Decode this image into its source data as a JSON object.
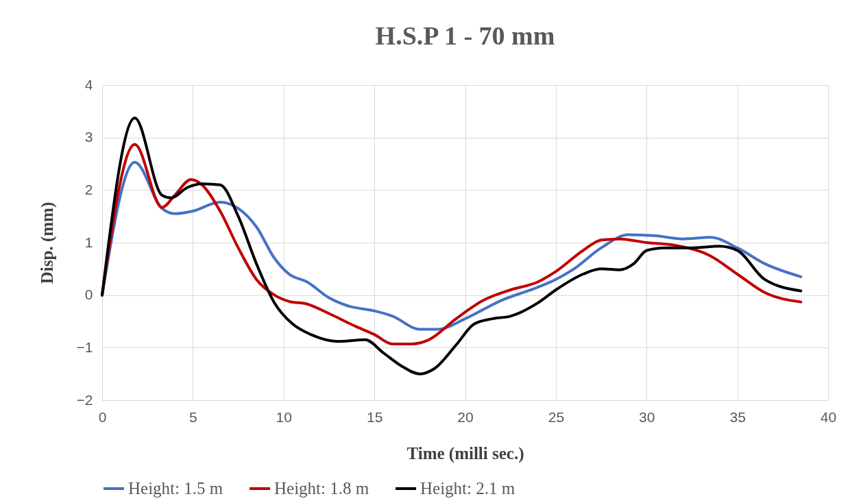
{
  "chart_data": {
    "type": "line",
    "title": "H.S.P 1 - 70 mm",
    "xlabel": "Time (milli sec.)",
    "ylabel": "Disp. (mm)",
    "xlim": [
      0,
      40
    ],
    "xticks": [
      0,
      5,
      10,
      15,
      20,
      25,
      30,
      35,
      40
    ],
    "ylim": [
      -2,
      4
    ],
    "yticks": [
      -2,
      -1,
      0,
      1,
      2,
      3,
      4
    ],
    "grid": true,
    "legend": "bottom",
    "line_style": "solid",
    "marker": "none",
    "series": [
      {
        "name": "Height: 1.5 m",
        "color": "#4472c4",
        "x": [
          0,
          1.8,
          3.3,
          4,
          5,
          6.5,
          7.5,
          8.5,
          9.5,
          10.3,
          11.3,
          12.5,
          13.5,
          15,
          16,
          17.5,
          18.5,
          20,
          22,
          24,
          25,
          26,
          27.5,
          29,
          30.5,
          32,
          33.5,
          35,
          36.5,
          38.5
        ],
        "values": [
          0,
          2.53,
          1.65,
          1.55,
          1.6,
          1.77,
          1.65,
          1.3,
          0.7,
          0.4,
          0.25,
          -0.05,
          -0.2,
          -0.3,
          -0.4,
          -0.65,
          -0.65,
          -0.45,
          -0.1,
          0.15,
          0.3,
          0.5,
          0.9,
          1.15,
          1.13,
          1.07,
          1.1,
          0.9,
          0.6,
          0.35
        ]
      },
      {
        "name": "Height: 1.8 m",
        "color": "#c00000",
        "x": [
          0,
          1.8,
          3.3,
          4,
          4.9,
          5.5,
          6.5,
          7.5,
          8.5,
          9.5,
          10.3,
          11.3,
          12.5,
          14,
          15,
          16,
          17,
          18,
          19.5,
          21,
          22.5,
          24,
          25,
          26.5,
          27.5,
          28.5,
          30,
          31.5,
          33.5,
          35,
          36.5,
          38.5
        ],
        "values": [
          0,
          2.87,
          1.67,
          1.9,
          2.2,
          2.1,
          1.6,
          0.9,
          0.3,
          0,
          -0.12,
          -0.17,
          -0.35,
          -0.6,
          -0.75,
          -0.93,
          -0.93,
          -0.85,
          -0.45,
          -0.1,
          0.1,
          0.25,
          0.45,
          0.85,
          1.05,
          1.07,
          1,
          0.95,
          0.75,
          0.4,
          0.05,
          -0.13
        ]
      },
      {
        "name": "Height: 2.1 m",
        "color": "#000000",
        "x": [
          0,
          1.8,
          3.3,
          3.8,
          4.7,
          5.5,
          6.5,
          7.5,
          8.5,
          9.5,
          10.5,
          11.5,
          13,
          14.5,
          15.5,
          16.5,
          17.5,
          18.3,
          19.5,
          20.5,
          21.5,
          22.5,
          24,
          25,
          26.5,
          27.5,
          28.5,
          29.3,
          30,
          31,
          32.5,
          34,
          35,
          36.5,
          38.5
        ],
        "values": [
          0,
          3.37,
          1.9,
          1.85,
          2.05,
          2.12,
          2.1,
          1.5,
          0.6,
          -0.15,
          -0.55,
          -0.75,
          -0.88,
          -0.85,
          -1.1,
          -1.35,
          -1.5,
          -1.4,
          -0.95,
          -0.55,
          -0.45,
          -0.4,
          -0.15,
          0.1,
          0.4,
          0.5,
          0.48,
          0.6,
          0.85,
          0.9,
          0.9,
          0.93,
          0.85,
          0.3,
          0.08
        ]
      }
    ]
  }
}
